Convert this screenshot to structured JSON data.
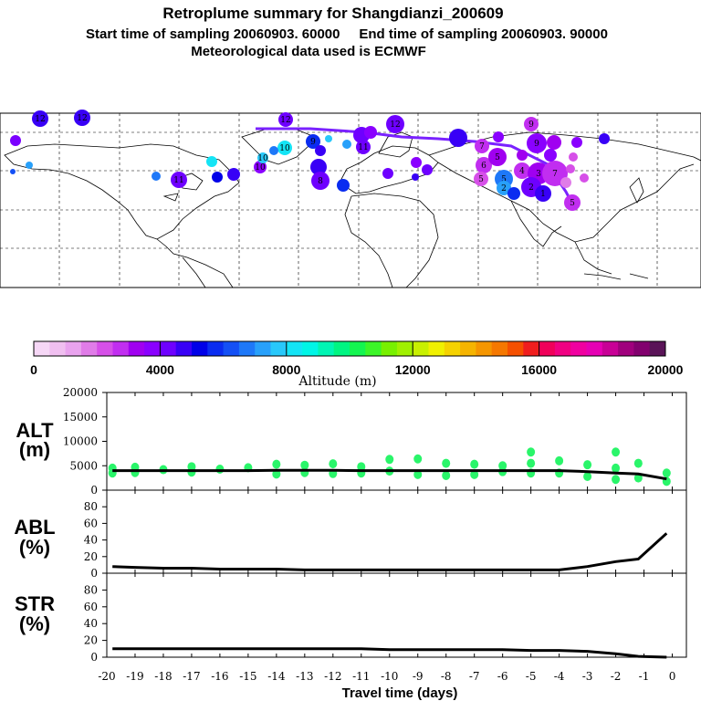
{
  "header": {
    "title": "Retroplume summary for Shangdianzi_200609",
    "subtitle": "Start time of sampling 20060903. 60000     End time of sampling 20060903. 90000",
    "met": "Meteorological data used is ECMWF"
  },
  "colorbar": {
    "label": "Altitude (m)",
    "ticks": [
      "0",
      "4000",
      "8000",
      "12000",
      "16000",
      "20000"
    ],
    "colors": [
      "#f6d7f6",
      "#f0bff0",
      "#e9a3ee",
      "#e07ce8",
      "#d650e8",
      "#c12ef0",
      "#a000f0",
      "#8a00ff",
      "#6e00ff",
      "#3800f6",
      "#0000e8",
      "#0a2cf0",
      "#1450f5",
      "#1e78f8",
      "#28a0fa",
      "#28c8fa",
      "#14e4f5",
      "#00f5e6",
      "#00f5b4",
      "#00f582",
      "#14f550",
      "#3cf528",
      "#78f000",
      "#a0f000",
      "#c8f000",
      "#f0f000",
      "#f5d200",
      "#f5b400",
      "#f59600",
      "#f57800",
      "#f55000",
      "#f01e1e",
      "#f0005a",
      "#f00082",
      "#f000a0",
      "#e600b4",
      "#c80096",
      "#a0007d",
      "#82006e",
      "#5a1458"
    ]
  },
  "map": {
    "region": "Northern hemisphere retroplume map",
    "cluster_labels": [
      "12",
      "11",
      "10",
      "9",
      "8",
      "7",
      "6",
      "5",
      "4",
      "3",
      "2",
      "1"
    ]
  },
  "chart_data": [
    {
      "type": "line",
      "panel": "altitude",
      "label_main": "ALT",
      "label_unit": "(m)",
      "xlabel": "Travel time (days)",
      "x": [
        -19.8,
        -19,
        -18,
        -17,
        -16,
        -15,
        -14,
        -13,
        -12,
        -11,
        -10,
        -9,
        -8,
        -7,
        -6,
        -5,
        -4,
        -3,
        -2,
        -1.2,
        -0.2
      ],
      "y": [
        4000,
        4000,
        4000,
        4000,
        4000,
        4000,
        4050,
        4050,
        4050,
        4000,
        4000,
        4000,
        4000,
        4000,
        4000,
        4000,
        4000,
        3800,
        3500,
        3300,
        2300
      ],
      "ylim": [
        0,
        20000
      ],
      "yticks": [
        "0",
        "5000",
        "10000",
        "15000",
        "20000"
      ],
      "scatter_points": [
        {
          "x": -19.8,
          "y": 4500
        },
        {
          "x": -19.8,
          "y": 3500
        },
        {
          "x": -19.0,
          "y": 4700
        },
        {
          "x": -19.0,
          "y": 3600
        },
        {
          "x": -18.0,
          "y": 4200
        },
        {
          "x": -17.0,
          "y": 4800
        },
        {
          "x": -17.0,
          "y": 3700
        },
        {
          "x": -16.0,
          "y": 4300
        },
        {
          "x": -15.0,
          "y": 4600
        },
        {
          "x": -14.0,
          "y": 5300
        },
        {
          "x": -14.0,
          "y": 3300
        },
        {
          "x": -13.0,
          "y": 5100
        },
        {
          "x": -13.0,
          "y": 3600
        },
        {
          "x": -12.0,
          "y": 5400
        },
        {
          "x": -12.0,
          "y": 3400
        },
        {
          "x": -11.0,
          "y": 4800
        },
        {
          "x": -11.0,
          "y": 3500
        },
        {
          "x": -10.0,
          "y": 6300
        },
        {
          "x": -10.0,
          "y": 3900
        },
        {
          "x": -9.0,
          "y": 6400
        },
        {
          "x": -9.0,
          "y": 3200
        },
        {
          "x": -8.0,
          "y": 5500
        },
        {
          "x": -8.0,
          "y": 3000
        },
        {
          "x": -7.0,
          "y": 5300
        },
        {
          "x": -7.0,
          "y": 3200
        },
        {
          "x": -6.0,
          "y": 5000
        },
        {
          "x": -6.0,
          "y": 3800
        },
        {
          "x": -5.0,
          "y": 5500
        },
        {
          "x": -5.0,
          "y": 3500
        },
        {
          "x": -4.0,
          "y": 6000
        },
        {
          "x": -4.0,
          "y": 3500
        },
        {
          "x": -3.0,
          "y": 5200
        },
        {
          "x": -3.0,
          "y": 2800
        },
        {
          "x": -2.0,
          "y": 4500
        },
        {
          "x": -2.0,
          "y": 2200
        },
        {
          "x": -1.2,
          "y": 5500
        },
        {
          "x": -1.2,
          "y": 2500
        },
        {
          "x": -0.2,
          "y": 3500
        },
        {
          "x": -0.2,
          "y": 1800
        },
        {
          "x": -5.0,
          "y": 7800
        },
        {
          "x": -2.0,
          "y": 7800
        }
      ]
    },
    {
      "type": "line",
      "panel": "abl",
      "label_main": "ABL",
      "label_unit": "(%)",
      "x": [
        -19.8,
        -19,
        -18,
        -17,
        -16,
        -15,
        -14,
        -13,
        -12,
        -11,
        -10,
        -9,
        -8,
        -7,
        -6,
        -5,
        -4,
        -3,
        -2,
        -1.2,
        -0.2
      ],
      "y": [
        8,
        7,
        6,
        6,
        5,
        5,
        5,
        4,
        4,
        4,
        4,
        4,
        4,
        4,
        4,
        4,
        4,
        8,
        14,
        17,
        48
      ],
      "ylim": [
        0,
        100
      ],
      "yticks": [
        "0",
        "20",
        "40",
        "60",
        "80"
      ]
    },
    {
      "type": "line",
      "panel": "str",
      "label_main": "STR",
      "label_unit": "(%)",
      "x": [
        -19.8,
        -19,
        -18,
        -17,
        -16,
        -15,
        -14,
        -13,
        -12,
        -11,
        -10,
        -9,
        -8,
        -7,
        -6,
        -5,
        -4,
        -3,
        -2,
        -1.2,
        -0.2
      ],
      "y": [
        10,
        10,
        10,
        10,
        10,
        10,
        10,
        10,
        10,
        10,
        9,
        9,
        9,
        9,
        9,
        8,
        8,
        7,
        4,
        1,
        0
      ],
      "ylim": [
        0,
        100
      ],
      "yticks": [
        "0",
        "20",
        "40",
        "60",
        "80"
      ]
    }
  ],
  "xaxis": {
    "ticks": [
      "-20",
      "-19",
      "-18",
      "-17",
      "-16",
      "-15",
      "-14",
      "-13",
      "-12",
      "-11",
      "-10",
      "-9",
      "-8",
      "-7",
      "-6",
      "-5",
      "-4",
      "-3",
      "-2",
      "-1",
      "0"
    ],
    "label": "Travel time (days)"
  }
}
